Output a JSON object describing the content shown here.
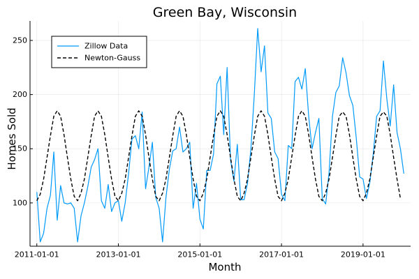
{
  "chart_data": {
    "type": "line",
    "title": "Green Bay, Wisconsin",
    "xlabel": "Month",
    "ylabel": "Homes Sold",
    "x_start": "2011-01-01",
    "x_step": "month",
    "xlim": [
      "2010-11-01",
      "2020-03-01"
    ],
    "ylim": [
      60,
      268
    ],
    "x_ticks": [
      "2011-01-01",
      "2013-01-01",
      "2015-01-01",
      "2017-01-01",
      "2019-01-01"
    ],
    "y_ticks": [
      100,
      150,
      200,
      250
    ],
    "grid": true,
    "legend": "top-left",
    "series": [
      {
        "name": "Zillow Data",
        "style": "solid",
        "color": "#009AFA",
        "values": [
          110,
          64,
          72,
          95,
          107,
          147,
          84,
          116,
          100,
          99,
          100,
          95,
          64,
          88,
          100,
          115,
          133,
          140,
          150,
          102,
          95,
          117,
          92,
          100,
          102,
          83,
          100,
          127,
          159,
          162,
          150,
          184,
          113,
          133,
          156,
          105,
          95,
          64,
          105,
          131,
          148,
          150,
          170,
          147,
          150,
          156,
          95,
          118,
          85,
          76,
          130,
          130,
          145,
          210,
          217,
          163,
          225,
          140,
          120,
          154,
          103,
          103,
          118,
          150,
          200,
          261,
          221,
          245,
          183,
          178,
          147,
          141,
          108,
          102,
          153,
          150,
          212,
          216,
          205,
          224,
          180,
          150,
          165,
          178,
          104,
          99,
          128,
          180,
          202,
          208,
          234,
          220,
          199,
          190,
          160,
          124,
          122,
          104,
          119,
          145,
          180,
          185,
          231,
          196,
          171,
          209,
          165,
          150,
          127
        ]
      },
      {
        "name": "Newton-Gauss",
        "style": "dashed",
        "color": "#000000",
        "values": [
          102,
          108,
          122,
          142,
          162,
          180,
          185,
          180,
          163,
          142,
          122,
          106,
          102,
          109,
          122,
          142,
          162,
          180,
          185,
          180,
          163,
          142,
          122,
          106,
          102,
          109,
          122,
          142,
          162,
          180,
          185,
          180,
          163,
          142,
          122,
          106,
          102,
          109,
          122,
          142,
          162,
          180,
          185,
          180,
          163,
          142,
          122,
          106,
          102,
          109,
          122,
          142,
          162,
          180,
          185,
          180,
          163,
          142,
          122,
          106,
          102,
          109,
          122,
          142,
          162,
          180,
          185,
          180,
          163,
          142,
          122,
          106,
          102,
          109,
          122,
          142,
          162,
          180,
          185,
          180,
          163,
          142,
          122,
          106,
          102,
          109,
          122,
          142,
          162,
          180,
          184,
          180,
          163,
          142,
          122,
          106,
          102,
          109,
          122,
          142,
          162,
          180,
          184,
          180,
          163,
          142,
          122,
          104
        ]
      }
    ]
  }
}
